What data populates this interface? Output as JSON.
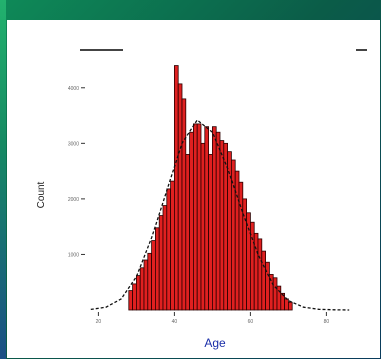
{
  "chart_data": {
    "type": "bar",
    "xlabel": "Age",
    "ylabel": "Count",
    "title": "",
    "x_ticks": [
      "20",
      "40",
      "60",
      "80"
    ],
    "y_ticks": [
      "1000",
      "2000",
      "3000",
      "4000"
    ],
    "xlim": [
      17,
      92
    ],
    "ylim": [
      0,
      4500
    ],
    "bin_width": 1,
    "series": [
      {
        "name": "",
        "color": "#e02020",
        "x": [
          28,
          29,
          30,
          31,
          32,
          33,
          34,
          35,
          36,
          37,
          38,
          39,
          40,
          41,
          42,
          43,
          44,
          45,
          46,
          47,
          48,
          49,
          50,
          51,
          52,
          53,
          54,
          55,
          56,
          57,
          58,
          59,
          60,
          61,
          62,
          63,
          64,
          65,
          66,
          67,
          68,
          69,
          70
        ],
        "values": [
          350,
          470,
          620,
          760,
          900,
          1020,
          1250,
          1480,
          1700,
          1880,
          2180,
          2320,
          4400,
          4070,
          3800,
          2800,
          3200,
          3350,
          3350,
          3000,
          3300,
          2800,
          3300,
          3200,
          3050,
          3000,
          2850,
          2700,
          2500,
          2300,
          2000,
          1750,
          1580,
          1380,
          1280,
          1060,
          860,
          640,
          580,
          430,
          300,
          200,
          140
        ]
      }
    ],
    "density_curve": {
      "name": "",
      "style": "dashed",
      "color": "#111111",
      "x": [
        18,
        22,
        26,
        30,
        34,
        38,
        42,
        46,
        50,
        54,
        58,
        62,
        66,
        70,
        74,
        78,
        82,
        86
      ],
      "values": [
        10,
        50,
        200,
        600,
        1300,
        2150,
        3000,
        3420,
        3200,
        2550,
        1750,
        1000,
        450,
        170,
        50,
        12,
        3,
        0
      ]
    }
  }
}
